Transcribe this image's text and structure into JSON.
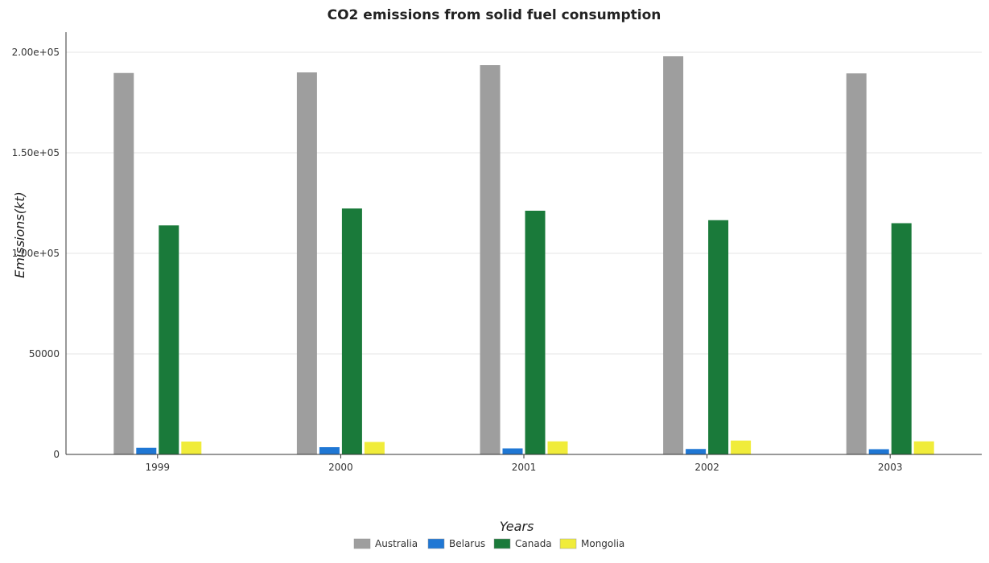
{
  "chart_data": {
    "type": "bar",
    "title": "CO2 emissions from solid fuel consumption",
    "xlabel": "Years",
    "ylabel": "Emissions(kt)",
    "categories": [
      "1999",
      "2000",
      "2001",
      "2002",
      "2003"
    ],
    "ylim": [
      0,
      210000
    ],
    "yticks": [
      0,
      50000,
      100000,
      150000,
      200000
    ],
    "ytick_labels": [
      "0",
      "50000",
      "1.00e+05",
      "1.50e+05",
      "2.00e+05"
    ],
    "grid": true,
    "legend_position": "bottom-center",
    "series": [
      {
        "name": "Australia",
        "color": "#9e9e9e",
        "values": [
          189700,
          190000,
          193600,
          198000,
          189500
        ]
      },
      {
        "name": "Belarus",
        "color": "#1f77d4",
        "values": [
          3300,
          3600,
          3000,
          2700,
          2600
        ]
      },
      {
        "name": "Canada",
        "color": "#1a7a3a",
        "values": [
          113900,
          122300,
          121200,
          116500,
          115000
        ]
      },
      {
        "name": "Mongolia",
        "color": "#f0ec3a",
        "values": [
          6400,
          6200,
          6500,
          6900,
          6500
        ]
      }
    ]
  }
}
